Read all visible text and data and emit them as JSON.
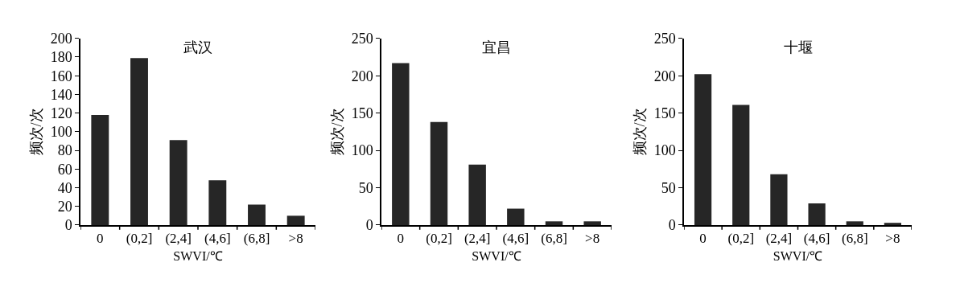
{
  "chart_data": [
    {
      "type": "bar",
      "title": "武汉",
      "xlabel": "SWVI/℃",
      "ylabel": "频次/次",
      "categories": [
        "0",
        "(0,2]",
        "(2,4]",
        "(4,6]",
        "(6,8]",
        ">8"
      ],
      "values": [
        118,
        179,
        91,
        48,
        22,
        10
      ],
      "color": "#262626",
      "ylim": [
        0,
        200
      ],
      "yticks": [
        0,
        20,
        40,
        60,
        80,
        100,
        120,
        140,
        160,
        180,
        200
      ]
    },
    {
      "type": "bar",
      "title": "宜昌",
      "xlabel": "SWVI/℃",
      "ylabel": "频次/次",
      "categories": [
        "0",
        "(0,2]",
        "(2,4]",
        "(4,6]",
        "(6,8]",
        ">8"
      ],
      "values": [
        217,
        138,
        81,
        22,
        5,
        5
      ],
      "color": "#262626",
      "ylim": [
        0,
        250
      ],
      "yticks": [
        0,
        50,
        100,
        150,
        200,
        250
      ]
    },
    {
      "type": "bar",
      "title": "十堰",
      "xlabel": "SWVI/℃",
      "ylabel": "频次/次",
      "categories": [
        "0",
        "(0,2]",
        "(2,4]",
        "(4,6]",
        "(6,8]",
        ">8"
      ],
      "values": [
        202,
        161,
        68,
        29,
        5,
        3
      ],
      "color": "#262626",
      "ylim": [
        0,
        250
      ],
      "yticks": [
        0,
        50,
        100,
        150,
        200,
        250
      ]
    }
  ]
}
